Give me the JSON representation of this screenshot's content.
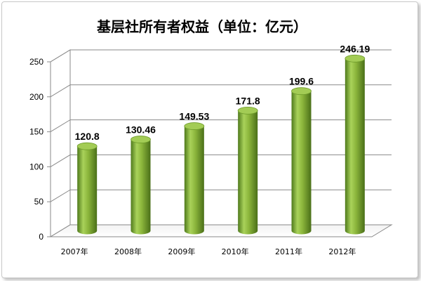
{
  "chart_data": {
    "type": "bar",
    "title": "基层社所有者权益（单位：亿元）",
    "categories": [
      "2007年",
      "2008年",
      "2009年",
      "2010年",
      "2011年",
      "2012年"
    ],
    "values": [
      120.8,
      130.46,
      149.53,
      171.8,
      199.6,
      246.19
    ],
    "data_labels": [
      "120.8",
      "130.46",
      "149.53",
      "171.8",
      "199.6",
      "246.19"
    ],
    "y_ticks": [
      "0",
      "50",
      "100",
      "150",
      "200",
      "250"
    ],
    "ylim": [
      0,
      250
    ],
    "grid": true,
    "bar_color": "#8cb63c",
    "style": "3d-cylinder"
  }
}
